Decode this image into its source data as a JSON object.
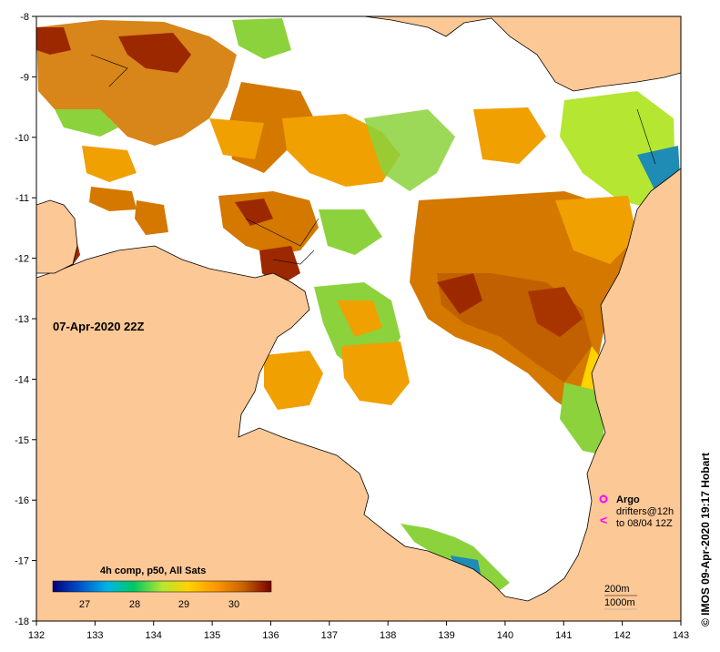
{
  "map": {
    "title_date": "07-Apr-2020 22Z",
    "credit": "© IMOS 09-Apr-2020 19:17 Hobart",
    "lon_ticks": [
      "132",
      "133",
      "134",
      "135",
      "136",
      "137",
      "138",
      "139",
      "140",
      "141",
      "142",
      "143"
    ],
    "lat_ticks": [
      "-8",
      "-9",
      "-10",
      "-11",
      "-12",
      "-13",
      "-14",
      "-15",
      "-16",
      "-17",
      "-18"
    ],
    "lon_range": [
      132,
      143
    ],
    "lat_range": [
      -8,
      -18
    ],
    "colorbar": {
      "title": "4h comp, p50, All Sats",
      "ticks": [
        "27",
        "28",
        "29",
        "30"
      ],
      "range": [
        26.4,
        30.6
      ],
      "colors": [
        "#00007a",
        "#0050c8",
        "#00b4e6",
        "#00c864",
        "#b4e632",
        "#ffd200",
        "#ff9600",
        "#c86400",
        "#7a0000"
      ]
    },
    "legend": {
      "argo_label": "Argo",
      "drifters_label": "drifters@12h",
      "drifters_to": "to 08/04 12Z",
      "argo_color": "#ff00ff"
    },
    "contours": {
      "c200": "200m",
      "c1000": "1000m"
    },
    "colors": {
      "land": "#fcc896",
      "ocean": "#ffffff",
      "sst_warm": "#d47800",
      "sst_hot": "#9c2800",
      "sst_mid": "#f0a000",
      "sst_cool": "#8cd23c",
      "sst_cold": "#1e8cb4"
    }
  }
}
